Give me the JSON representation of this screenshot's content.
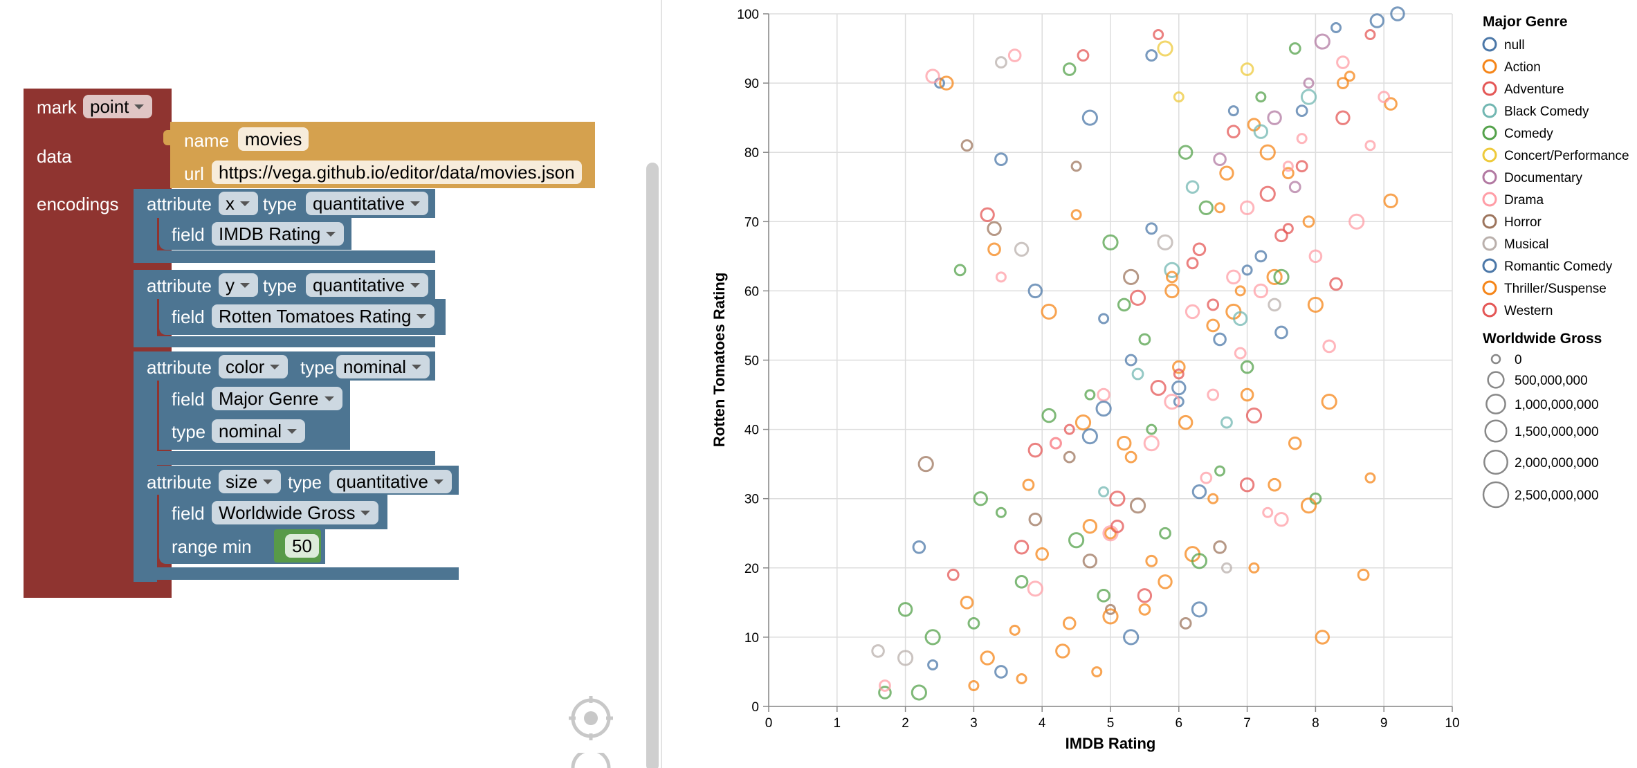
{
  "blocks": {
    "mark": {
      "label": "mark",
      "value": "point",
      "data_label": "data",
      "encodings_label": "encodings"
    },
    "data": {
      "name_label": "name",
      "name_value": "movies",
      "url_label": "url",
      "url_value": "https://vega.github.io/editor/data/movies.json"
    },
    "encodings": [
      {
        "attr_label": "attribute",
        "attr": "x",
        "type_label": "type",
        "type": "quantitative",
        "field_label": "field",
        "field": "IMDB Rating"
      },
      {
        "attr_label": "attribute",
        "attr": "y",
        "type_label": "type",
        "type": "quantitative",
        "field_label": "field",
        "field": "Rotten Tomatoes Rating"
      },
      {
        "attr_label": "attribute",
        "attr": "color",
        "type_label": "type",
        "type": "nominal",
        "field_label": "field",
        "field": "Major Genre",
        "sub_type_label": "type",
        "sub_type": "nominal"
      },
      {
        "attr_label": "attribute",
        "attr": "size",
        "type_label": "type",
        "type": "quantitative",
        "field_label": "field",
        "field": "Worldwide Gross",
        "range_label": "range min",
        "range_value": "50"
      }
    ],
    "icons": [
      "recenter-icon",
      "zoom-icon"
    ]
  },
  "chart_data": {
    "type": "scatter",
    "xlabel": "IMDB Rating",
    "ylabel": "Rotten Tomatoes Rating",
    "xlim": [
      0,
      10
    ],
    "ylim": [
      0,
      100
    ],
    "xticks": [
      "0",
      "1",
      "2",
      "3",
      "4",
      "5",
      "6",
      "7",
      "8",
      "9",
      "10"
    ],
    "yticks": [
      "0",
      "10",
      "20",
      "30",
      "40",
      "50",
      "60",
      "70",
      "80",
      "90",
      "100"
    ],
    "grid": true,
    "mark": "open circle",
    "legend_placement": "right",
    "color_legend": {
      "title": "Major Genre",
      "entries": [
        {
          "label": "null",
          "color": "#4c78a8"
        },
        {
          "label": "Action",
          "color": "#f58518"
        },
        {
          "label": "Adventure",
          "color": "#e45756"
        },
        {
          "label": "Black Comedy",
          "color": "#72b7b2"
        },
        {
          "label": "Comedy",
          "color": "#54a24b"
        },
        {
          "label": "Concert/Performance",
          "color": "#eeca3b"
        },
        {
          "label": "Documentary",
          "color": "#b279a2"
        },
        {
          "label": "Drama",
          "color": "#ff9da6"
        },
        {
          "label": "Horror",
          "color": "#9d755d"
        },
        {
          "label": "Musical",
          "color": "#bab0ac"
        },
        {
          "label": "Romantic Comedy",
          "color": "#4c78a8"
        },
        {
          "label": "Thriller/Suspense",
          "color": "#f58518"
        },
        {
          "label": "Western",
          "color": "#e45756"
        }
      ]
    },
    "size_legend": {
      "title": "Worldwide Gross",
      "entries": [
        {
          "label": "0",
          "value": 0
        },
        {
          "label": "500,000,000",
          "value": 500000000
        },
        {
          "label": "1,000,000,000",
          "value": 1000000000
        },
        {
          "label": "1,500,000,000",
          "value": 1500000000
        },
        {
          "label": "2,000,000,000",
          "value": 2000000000
        },
        {
          "label": "2,500,000,000",
          "value": 2500000000
        }
      ]
    },
    "series": [
      {
        "name": "null",
        "x": [
          2.5,
          3.4,
          4.7,
          5.6,
          3.9,
          4.9,
          2.2,
          6.3,
          7.2,
          9.2,
          8.3,
          6.6,
          5.3,
          7.8,
          8.9,
          6.0
        ],
        "y": [
          90,
          79,
          85,
          94,
          60,
          56,
          23,
          14,
          65,
          100,
          98,
          53,
          10,
          86,
          99,
          44
        ]
      },
      {
        "name": "Action",
        "x": [
          2.6,
          4.5,
          3.3,
          4.1,
          5.0,
          5.8,
          6.5,
          7.0,
          7.4,
          7.9,
          8.1,
          8.8,
          9.1,
          6.2,
          5.5,
          4.3,
          3.6,
          2.9,
          6.8,
          7.6,
          5.2,
          4.8,
          6.0,
          7.3,
          8.4,
          5.9,
          6.6,
          7.1,
          4.6,
          3.8
        ],
        "y": [
          90,
          71,
          66,
          57,
          25,
          18,
          30,
          45,
          62,
          70,
          10,
          33,
          87,
          22,
          14,
          8,
          11,
          15,
          57,
          77,
          38,
          5,
          49,
          80,
          90,
          60,
          72,
          84,
          41,
          32
        ]
      },
      {
        "name": "Adventure",
        "x": [
          4.6,
          3.2,
          5.7,
          6.3,
          7.1,
          7.8,
          8.4,
          8.8,
          6.8,
          5.4,
          4.2,
          3.7,
          6.0,
          7.5,
          5.1
        ],
        "y": [
          94,
          71,
          97,
          66,
          42,
          78,
          85,
          97,
          83,
          59,
          38,
          23,
          48,
          68,
          30
        ]
      },
      {
        "name": "Black Comedy",
        "x": [
          5.9,
          6.7,
          7.2,
          4.9,
          6.2,
          7.9,
          5.4,
          6.9
        ],
        "y": [
          63,
          41,
          83,
          31,
          75,
          88,
          48,
          56
        ]
      },
      {
        "name": "Comedy",
        "x": [
          1.7,
          2.2,
          2.8,
          3.1,
          3.4,
          4.4,
          5.0,
          5.5,
          6.1,
          6.6,
          7.0,
          7.5,
          8.0,
          4.1,
          4.7,
          3.7,
          2.4,
          5.8,
          6.4,
          7.2,
          5.2,
          4.5,
          3.0,
          2.0,
          5.6,
          4.9,
          6.3,
          7.7
        ],
        "y": [
          2,
          2,
          63,
          30,
          28,
          92,
          67,
          53,
          80,
          34,
          49,
          62,
          30,
          42,
          45,
          18,
          10,
          25,
          72,
          88,
          58,
          24,
          12,
          14,
          40,
          16,
          21,
          95
        ]
      },
      {
        "name": "Concert/Performance",
        "x": [
          6.0,
          7.0,
          5.8
        ],
        "y": [
          88,
          92,
          95
        ]
      },
      {
        "name": "Documentary",
        "x": [
          7.4,
          7.9,
          6.6,
          8.1,
          7.7
        ],
        "y": [
          85,
          90,
          79,
          96,
          75
        ]
      },
      {
        "name": "Drama",
        "x": [
          1.7,
          2.4,
          3.4,
          3.6,
          5.6,
          6.5,
          7.0,
          7.6,
          8.2,
          8.6,
          9.0,
          6.2,
          7.3,
          8.0,
          5.0,
          4.2,
          6.8,
          7.8,
          8.4,
          5.9,
          6.9,
          7.5,
          8.8,
          4.9,
          3.9,
          6.4,
          7.2
        ],
        "y": [
          3,
          91,
          62,
          94,
          38,
          45,
          72,
          78,
          52,
          70,
          88,
          57,
          28,
          65,
          25,
          38,
          62,
          82,
          93,
          44,
          51,
          27,
          81,
          45,
          17,
          33,
          60
        ]
      },
      {
        "name": "Horror",
        "x": [
          2.3,
          2.9,
          3.3,
          4.5,
          3.9,
          5.4,
          6.1,
          4.7,
          5.0,
          6.6,
          5.3,
          4.4
        ],
        "y": [
          35,
          81,
          69,
          78,
          27,
          29,
          12,
          21,
          14,
          23,
          62,
          36
        ]
      },
      {
        "name": "Musical",
        "x": [
          1.6,
          2.0,
          3.4,
          3.7,
          6.7,
          7.4,
          5.8
        ],
        "y": [
          8,
          7,
          93,
          66,
          20,
          58,
          67
        ]
      },
      {
        "name": "Romantic Comedy",
        "x": [
          2.4,
          3.4,
          4.7,
          5.6,
          6.0,
          6.8,
          7.5,
          4.9,
          5.3,
          6.3,
          7.0
        ],
        "y": [
          6,
          5,
          39,
          69,
          46,
          86,
          54,
          43,
          50,
          31,
          63
        ]
      },
      {
        "name": "Thriller/Suspense",
        "x": [
          3.2,
          3.7,
          4.4,
          5.0,
          5.6,
          6.1,
          7.1,
          7.7,
          8.2,
          8.7,
          9.1,
          6.9,
          7.4,
          8.0,
          5.3,
          4.7,
          3.0,
          6.5,
          7.9,
          5.9,
          6.7,
          8.5,
          4.0
        ],
        "y": [
          7,
          4,
          12,
          13,
          21,
          41,
          20,
          38,
          44,
          19,
          73,
          60,
          32,
          58,
          36,
          26,
          3,
          55,
          29,
          62,
          77,
          91,
          22
        ]
      },
      {
        "name": "Western",
        "x": [
          2.7,
          3.9,
          4.4,
          5.1,
          5.7,
          6.2,
          7.0,
          7.6,
          8.3,
          7.3,
          6.5,
          5.5
        ],
        "y": [
          19,
          37,
          40,
          26,
          46,
          64,
          32,
          69,
          61,
          74,
          58,
          16
        ]
      }
    ]
  }
}
